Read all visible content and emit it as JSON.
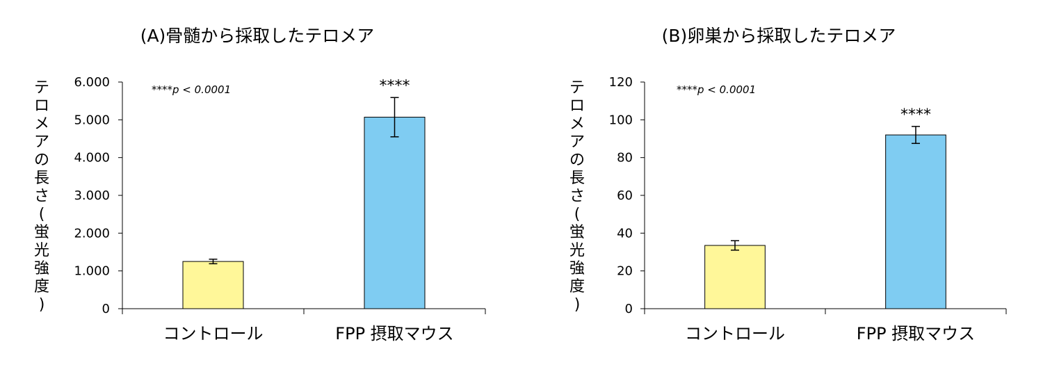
{
  "chart_data": [
    {
      "type": "bar",
      "title": "(A)骨髄から採取したテロメア",
      "ylabel": "テロメアの長さ(蛍光強度)",
      "categories": [
        "コントロール",
        "FPP 摂取マウス"
      ],
      "values": [
        1.25,
        5.07
      ],
      "error": [
        0.06,
        0.52
      ],
      "significance": [
        "",
        "****"
      ],
      "annotation": "****p < 0.0001",
      "ylim": [
        0,
        6
      ],
      "yticks": [
        0,
        1,
        2,
        3,
        4,
        5,
        6
      ],
      "ytick_labels": [
        "0",
        "1.000",
        "2.000",
        "3.000",
        "4.000",
        "5.000",
        "6.000"
      ],
      "colors": [
        "#FFF799",
        "#7FCCF2"
      ],
      "grid": false
    },
    {
      "type": "bar",
      "title": "(B)卵巣から採取したテロメア",
      "ylabel": "テロメアの長さ(蛍光強度)",
      "categories": [
        "コントロール",
        "FPP 摂取マウス"
      ],
      "values": [
        33.5,
        92
      ],
      "error": [
        2.5,
        4.5
      ],
      "significance": [
        "",
        "****"
      ],
      "annotation": "****p < 0.0001",
      "ylim": [
        0,
        120
      ],
      "yticks": [
        0,
        20,
        40,
        60,
        80,
        100,
        120
      ],
      "ytick_labels": [
        "0",
        "20",
        "40",
        "60",
        "80",
        "100",
        "120"
      ],
      "colors": [
        "#FFF799",
        "#7FCCF2"
      ],
      "grid": false
    }
  ]
}
